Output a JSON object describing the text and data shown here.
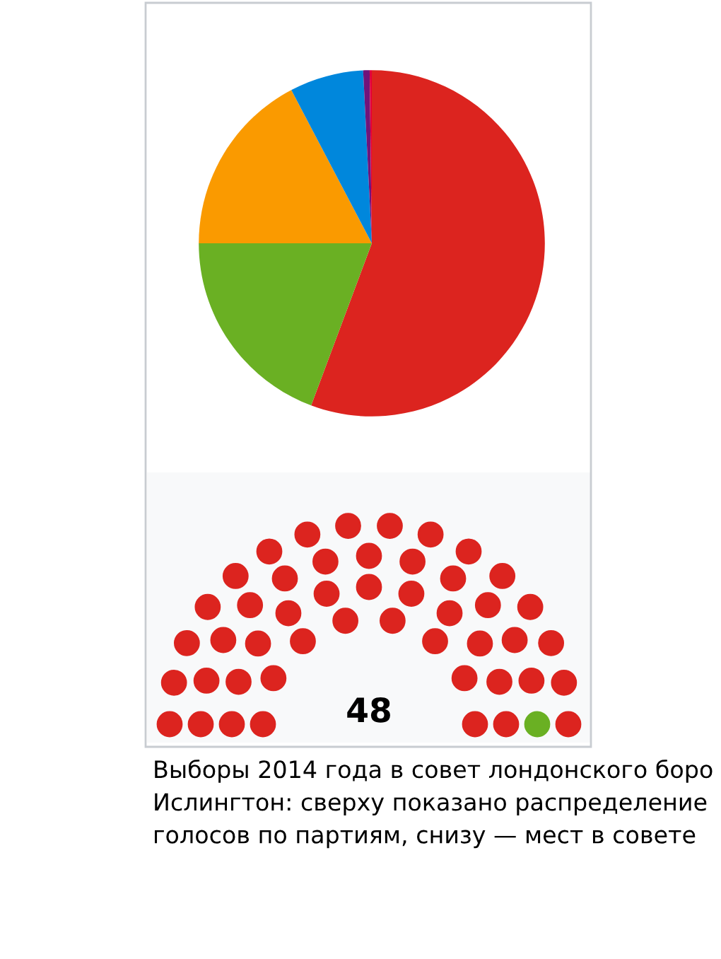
{
  "chart_data": [
    {
      "type": "pie",
      "categories": [
        null,
        null,
        null,
        null,
        null,
        null
      ],
      "values": [
        55.7,
        19.3,
        17.3,
        6.9,
        0.6,
        0.2
      ],
      "colors": [
        "#dc241f",
        "#6ab023",
        "#fa9a00",
        "#0087dc",
        "#70147a",
        "#e4003b"
      ]
    },
    {
      "type": "other",
      "annotations": [
        "48",
        "Выборы 2014 года в совет лондонского боро Ислингтон: сверху показано распределение голосов по партиям, снизу — мест в совете"
      ]
    }
  ]
}
